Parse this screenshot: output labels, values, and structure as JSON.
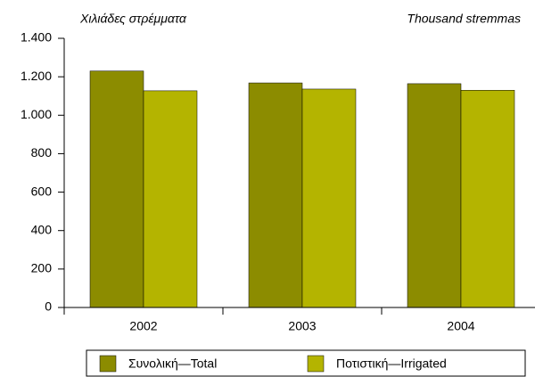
{
  "chart_data": {
    "type": "bar",
    "subtitle_left": "Χιλιάδες στρέμματα",
    "subtitle_right": "Thousand stremmas",
    "categories": [
      "2002",
      "2003",
      "2004"
    ],
    "series": [
      {
        "name": "Συνολική—Total",
        "color": "#8c8c00",
        "values": [
          1230,
          1168,
          1164
        ]
      },
      {
        "name": "Ποτιστική—Irrigated",
        "color": "#b4b400",
        "values": [
          1127,
          1136,
          1130
        ]
      }
    ],
    "ylim": [
      0,
      1400
    ],
    "yticks": [
      0,
      200,
      400,
      600,
      800,
      {
        "value": 1000,
        "label": "1.000"
      },
      {
        "value": 1200,
        "label": "1.200"
      },
      {
        "value": 1400,
        "label": "1.400"
      }
    ],
    "legend": "bottom"
  }
}
